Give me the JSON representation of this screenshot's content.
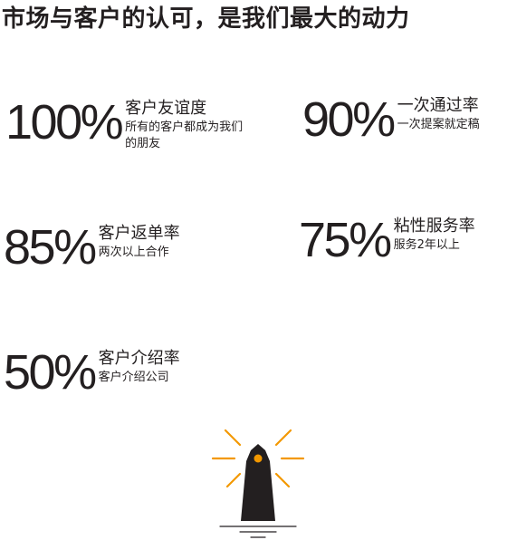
{
  "headline": "市场与客户的认可，是我们最大的动力",
  "stats": [
    {
      "value": "100%",
      "label": "客户友谊度",
      "sub": "所有的客户都成为我们的朋友"
    },
    {
      "value": "90%",
      "label": "一次通过率",
      "sub": "一次提案就定稿"
    },
    {
      "value": "85%",
      "label": "客户返单率",
      "sub": "两次以上合作"
    },
    {
      "value": "75%",
      "label": "粘性服务率",
      "sub": "服务2年以上"
    },
    {
      "value": "50%",
      "label": "客户介绍率",
      "sub": "客户介绍公司"
    }
  ],
  "colors": {
    "text": "#231f20",
    "accent": "#f39800",
    "lighthouse": "#231f20"
  },
  "icons": {
    "illustration": "lighthouse-icon"
  }
}
